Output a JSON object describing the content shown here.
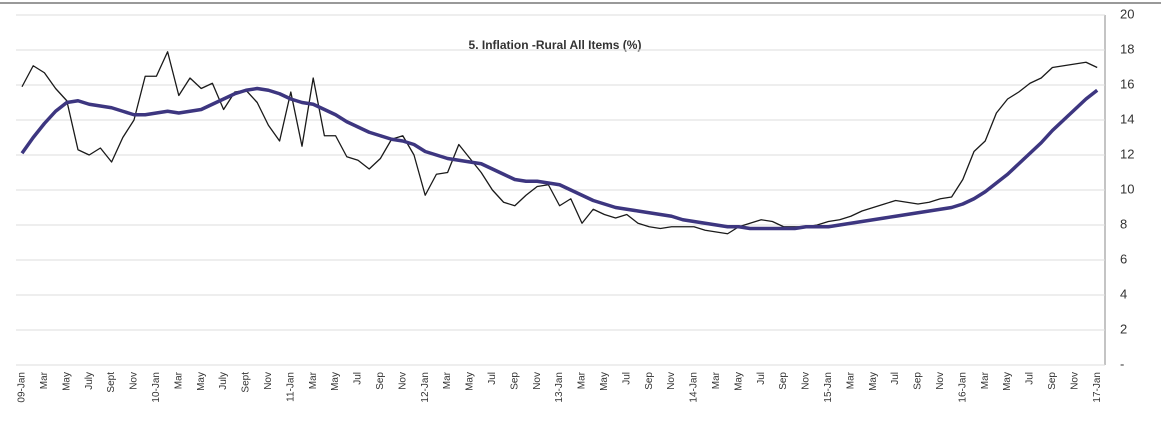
{
  "chart_data": {
    "type": "line",
    "title": "5. Inflation -Rural All Items (%)",
    "categories": [
      "09-Jan",
      null,
      "Mar",
      null,
      "May",
      null,
      "July",
      null,
      "Sept",
      null,
      "Nov",
      null,
      "10-Jan",
      null,
      "Mar",
      null,
      "May",
      null,
      "July",
      null,
      "Sept",
      null,
      "Nov",
      null,
      "11-Jan",
      null,
      "Mar",
      null,
      "May",
      null,
      "Jul",
      null,
      "Sep",
      null,
      "Nov",
      null,
      "12-Jan",
      null,
      "Mar",
      null,
      "May",
      null,
      "Jul",
      null,
      "Sep",
      null,
      "Nov",
      null,
      "13-Jan",
      null,
      "Mar",
      null,
      "May",
      null,
      "Jul",
      null,
      "Sep",
      null,
      "Nov",
      null,
      "14-Jan",
      null,
      "Mar",
      null,
      "May",
      null,
      "Jul",
      null,
      "Sep",
      null,
      "Nov",
      null,
      "15-Jan",
      null,
      "Mar",
      null,
      "May",
      null,
      "Jul",
      null,
      "Sep",
      null,
      "Nov",
      null,
      "16-Jan",
      null,
      "Mar",
      null,
      "May",
      null,
      "Jul",
      null,
      "Sep",
      null,
      "Nov",
      null,
      "17-Jan"
    ],
    "series": [
      {
        "color": "#1a1a1a",
        "values": [
          15.9,
          17.1,
          16.7,
          15.8,
          15.1,
          12.3,
          12.0,
          12.4,
          11.6,
          13.0,
          14.0,
          16.5,
          16.5,
          17.9,
          15.4,
          16.4,
          15.8,
          16.1,
          14.6,
          15.6,
          15.7,
          15.0,
          13.7,
          12.8,
          15.6,
          12.5,
          16.4,
          13.1,
          13.1,
          11.9,
          11.7,
          11.2,
          11.8,
          12.9,
          13.1,
          12.0,
          9.7,
          10.9,
          11.0,
          12.6,
          11.8,
          11.0,
          10.0,
          9.3,
          9.1,
          9.7,
          10.2,
          10.3,
          9.1,
          9.5,
          8.1,
          8.9,
          8.6,
          8.4,
          8.6,
          8.1,
          7.9,
          7.8,
          7.9,
          7.9,
          7.9,
          7.7,
          7.6,
          7.5,
          7.9,
          8.1,
          8.3,
          8.2,
          7.9,
          7.9,
          7.9,
          8.0,
          8.2,
          8.3,
          8.5,
          8.8,
          9.0,
          9.2,
          9.4,
          9.3,
          9.2,
          9.3,
          9.5,
          9.6,
          10.6,
          12.2,
          12.8,
          14.4,
          15.2,
          15.6,
          16.1,
          16.4,
          17.0,
          17.1,
          17.2,
          17.3,
          17.0
        ]
      },
      {
        "color": "#3d3680",
        "values": [
          12.1,
          13.0,
          13.8,
          14.5,
          15.0,
          15.1,
          14.9,
          14.8,
          14.7,
          14.5,
          14.3,
          14.3,
          14.4,
          14.5,
          14.4,
          14.5,
          14.6,
          14.9,
          15.2,
          15.5,
          15.7,
          15.8,
          15.7,
          15.5,
          15.2,
          15.0,
          14.9,
          14.6,
          14.3,
          13.9,
          13.6,
          13.3,
          13.1,
          12.9,
          12.8,
          12.6,
          12.2,
          12.0,
          11.8,
          11.7,
          11.6,
          11.5,
          11.2,
          10.9,
          10.6,
          10.5,
          10.5,
          10.4,
          10.3,
          10.0,
          9.7,
          9.4,
          9.2,
          9.0,
          8.9,
          8.8,
          8.7,
          8.6,
          8.5,
          8.3,
          8.2,
          8.1,
          8.0,
          7.9,
          7.9,
          7.8,
          7.8,
          7.8,
          7.8,
          7.8,
          7.9,
          7.9,
          7.9,
          8.0,
          8.1,
          8.2,
          8.3,
          8.4,
          8.5,
          8.6,
          8.7,
          8.8,
          8.9,
          9.0,
          9.2,
          9.5,
          9.9,
          10.4,
          10.9,
          11.5,
          12.1,
          12.7,
          13.4,
          14.0,
          14.6,
          15.2,
          15.7
        ]
      }
    ],
    "ylim": [
      0,
      20
    ],
    "yticks": [
      {
        "value": 0,
        "label": "-"
      },
      2,
      4,
      6,
      8,
      10,
      12,
      14,
      16,
      18,
      20
    ],
    "grid": true
  }
}
